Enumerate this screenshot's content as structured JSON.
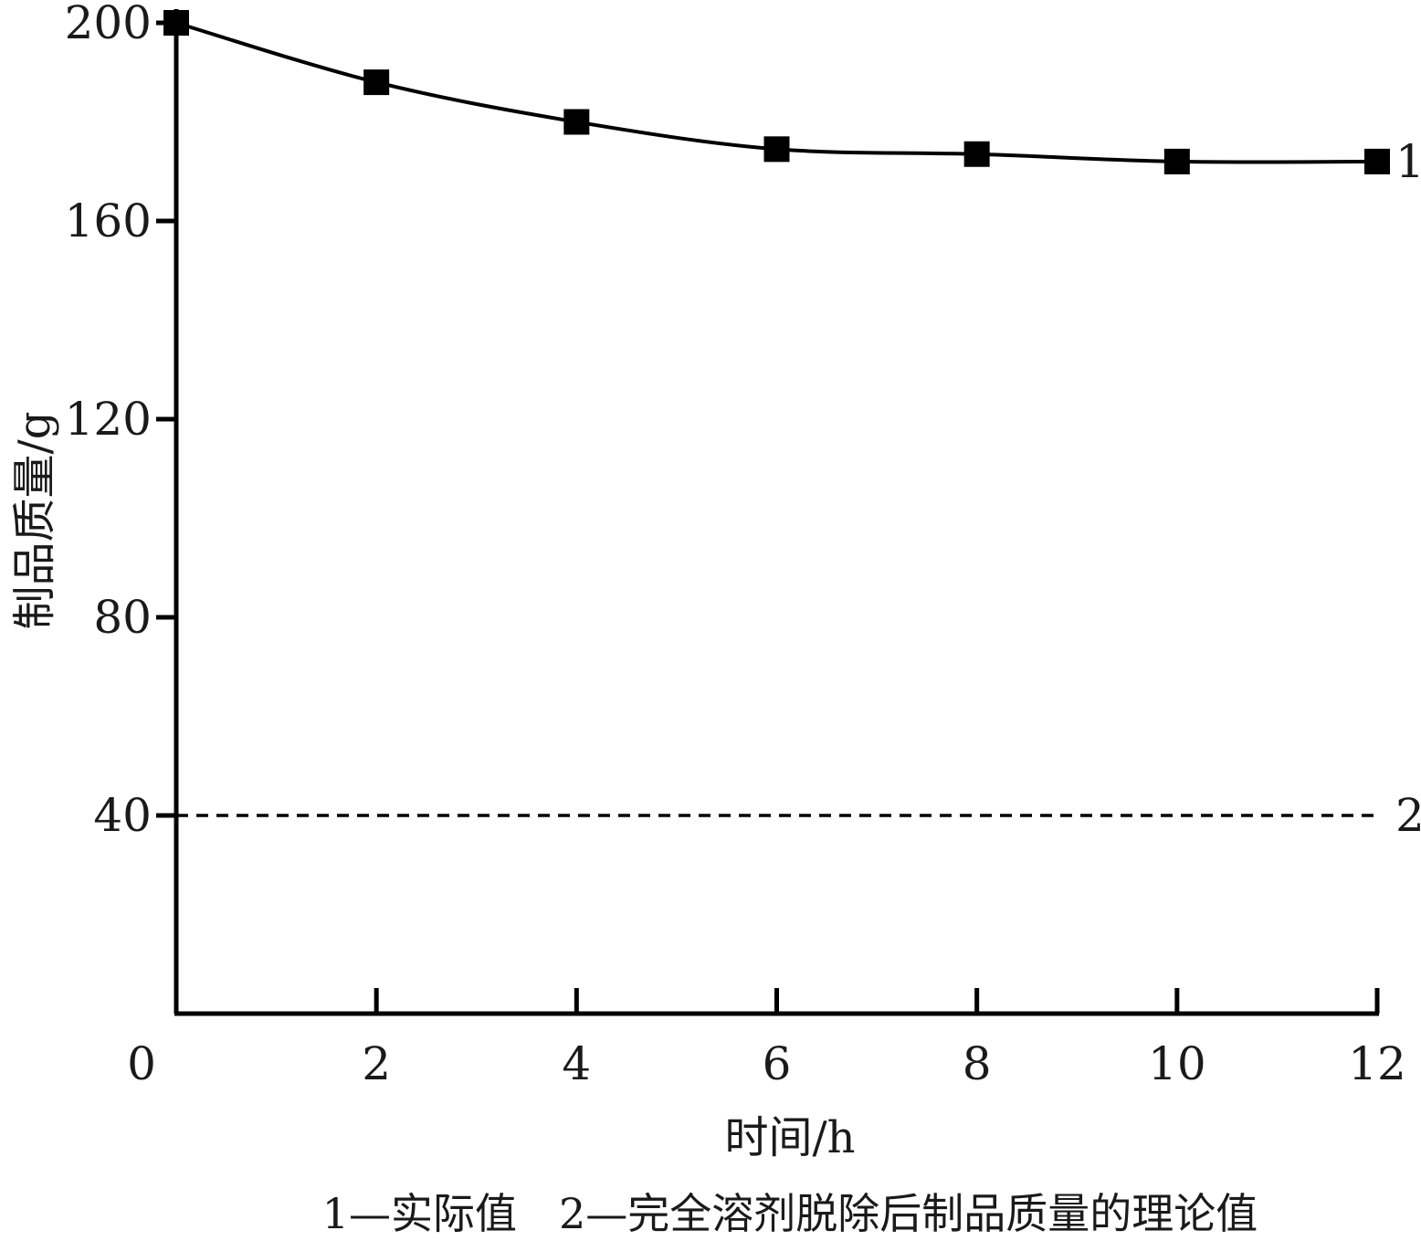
{
  "chart_data": {
    "type": "line",
    "xlabel": "时间/h",
    "ylabel": "制品质量/g",
    "xlim": [
      0,
      12
    ],
    "ylim": [
      0,
      200
    ],
    "x_ticks": [
      0,
      2,
      4,
      6,
      8,
      10,
      12
    ],
    "y_ticks": [
      40,
      80,
      120,
      160,
      200
    ],
    "grid": false,
    "series": [
      {
        "end_label": "1",
        "style": "solid-with-square-markers",
        "color": "#000000",
        "x": [
          0,
          2,
          4,
          6,
          8,
          10,
          12
        ],
        "y": [
          200,
          188,
          180,
          174.5,
          173.5,
          172,
          172
        ]
      },
      {
        "end_label": "2",
        "style": "dashed",
        "color": "#000000",
        "x": [
          0,
          12
        ],
        "y": [
          40,
          40
        ]
      }
    ],
    "caption": "1—实际值　2—完全溶剂脱除后制品质量的理论值"
  }
}
